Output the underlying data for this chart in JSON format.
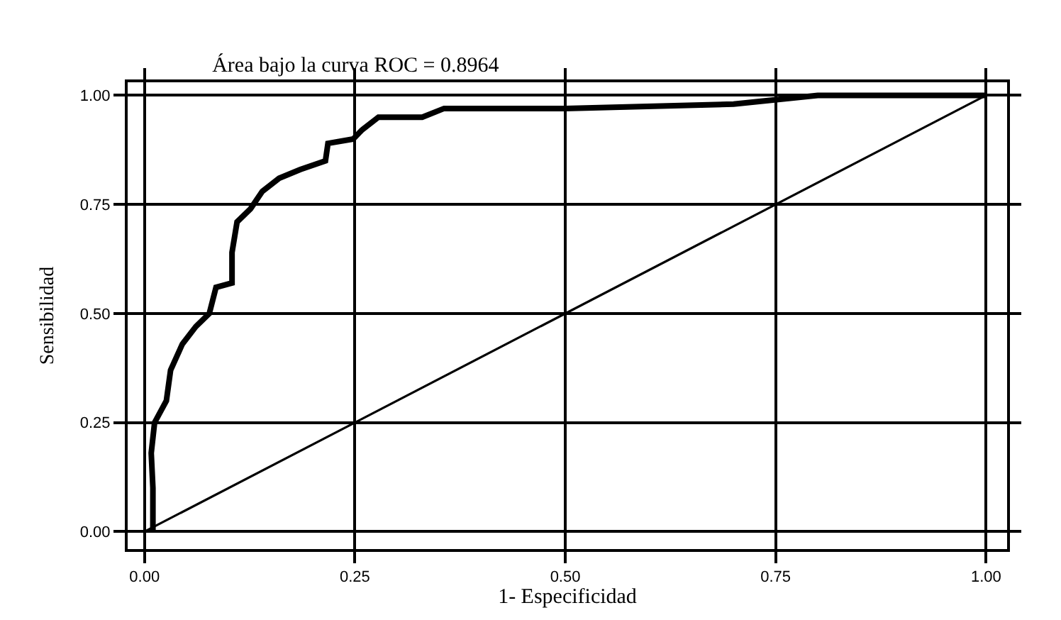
{
  "chart_data": {
    "type": "line",
    "title": "Área bajo la curva ROC = 0.8964",
    "xlabel": "1- Especificidad",
    "ylabel": "Sensibilidad",
    "xlim": [
      -0.02,
      1.025
    ],
    "ylim": [
      -0.04,
      1.03
    ],
    "xticks": [
      {
        "value": 0,
        "label": "0.00"
      },
      {
        "value": 0.25,
        "label": "0.25"
      },
      {
        "value": 0.5,
        "label": "0.50"
      },
      {
        "value": 0.75,
        "label": "0.75"
      },
      {
        "value": 1,
        "label": "1.00"
      }
    ],
    "yticks": [
      {
        "value": 0,
        "label": "0.00"
      },
      {
        "value": 0.25,
        "label": "0.25"
      },
      {
        "value": 0.5,
        "label": "0.50"
      },
      {
        "value": 0.75,
        "label": "0.75"
      },
      {
        "value": 1,
        "label": "1.00"
      }
    ],
    "grid": true,
    "marker": "none",
    "line_style": "solid",
    "series": [
      {
        "color": "#000000",
        "x": [
          0.01,
          0.01,
          0.008,
          0.012,
          0.026,
          0.031,
          0.045,
          0.061,
          0.077,
          0.085,
          0.104,
          0.104,
          0.11,
          0.126,
          0.14,
          0.16,
          0.185,
          0.215,
          0.218,
          0.248,
          0.258,
          0.278,
          0.33,
          0.356,
          0.5,
          0.7,
          0.8,
          1.0
        ],
        "values": [
          0,
          0.1,
          0.18,
          0.25,
          0.3,
          0.37,
          0.43,
          0.47,
          0.5,
          0.56,
          0.57,
          0.64,
          0.71,
          0.74,
          0.78,
          0.81,
          0.83,
          0.85,
          0.89,
          0.9,
          0.92,
          0.95,
          0.95,
          0.97,
          0.97,
          0.98,
          1.0,
          1.0
        ]
      },
      {
        "color": "#000000",
        "x": [
          0,
          1
        ],
        "values": [
          0,
          1
        ]
      }
    ]
  }
}
